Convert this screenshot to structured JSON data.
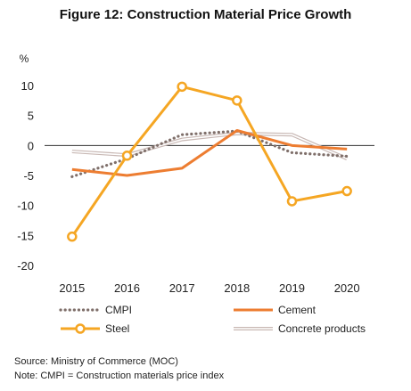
{
  "title": "Figure 12: Construction Material Price Growth",
  "chart_data": {
    "type": "line",
    "ylabel": "%",
    "x": [
      "2015",
      "2016",
      "2017",
      "2018",
      "2019",
      "2020"
    ],
    "ylim": [
      -20,
      10
    ],
    "yticks": [
      10,
      5,
      0,
      -5,
      -10,
      -15,
      -20
    ],
    "grid": false,
    "legend_position": "bottom",
    "series": [
      {
        "name": "CMPI",
        "values": [
          -5.2,
          -2.2,
          1.8,
          2.4,
          -1.2,
          -1.8
        ],
        "color": "#7f6f6a",
        "style": "dotted"
      },
      {
        "name": "Cement",
        "values": [
          -4.0,
          -5.0,
          -3.8,
          2.5,
          0.0,
          -0.6
        ],
        "color": "#ed7d31",
        "style": "solid"
      },
      {
        "name": "Steel",
        "values": [
          -15.2,
          -1.7,
          9.8,
          7.5,
          -9.3,
          -7.6
        ],
        "color": "#f5a623",
        "style": "marker"
      },
      {
        "name": "Concrete products",
        "values": [
          -1.0,
          -1.6,
          1.0,
          2.0,
          1.8,
          -2.2
        ],
        "color": "#c8b8b4",
        "style": "double"
      }
    ]
  },
  "notes": {
    "source": "Source: Ministry of Commerce (MOC)",
    "note": "Note: CMPI = Construction materials price index"
  }
}
